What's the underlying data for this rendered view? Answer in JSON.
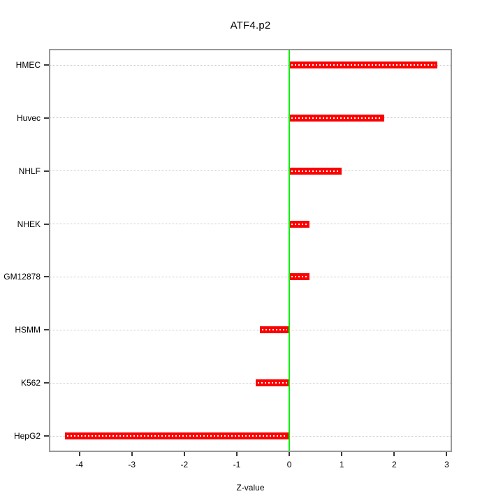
{
  "chart_data": {
    "type": "bar",
    "orientation": "horizontal",
    "title": "ATF4.p2",
    "xlabel": "Z-value",
    "categories": [
      "HMEC",
      "Huvec",
      "NHLF",
      "NHEK",
      "GM12878",
      "HSMM",
      "K562",
      "HepG2"
    ],
    "values": [
      2.82,
      1.81,
      1.0,
      0.39,
      0.38,
      -0.56,
      -0.64,
      -4.27
    ],
    "xlim": [
      -4.58,
      3.1
    ],
    "xticks": [
      -4,
      -3,
      -2,
      -1,
      0,
      1,
      2,
      3
    ],
    "zero_line_x": 0,
    "grid": "horizontal-dotted-per-category",
    "legend": "none",
    "colors": {
      "bar": "#ff0000",
      "bar_centerline": "#ffffff",
      "zero_line": "#00ee00",
      "box": "#999999",
      "grid": "#c9c9c9",
      "tick": "#3a3a3a",
      "text": "#000000",
      "background": "#ffffff"
    }
  }
}
